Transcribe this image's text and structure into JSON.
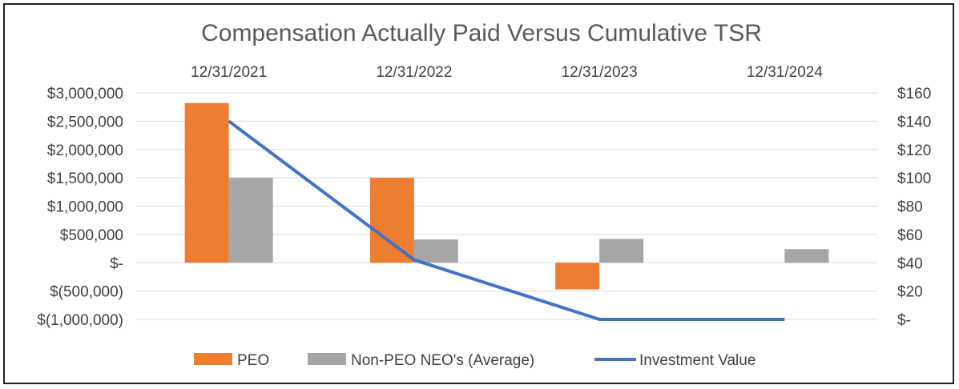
{
  "chart_data": {
    "type": "bar",
    "title": "Compensation Actually Paid Versus Cumulative TSR",
    "categories": [
      "12/31/2021",
      "12/31/2022",
      "12/31/2023",
      "12/31/2024"
    ],
    "series": [
      {
        "name": "PEO",
        "type": "bar",
        "axis": "left",
        "color": "#ED7D31",
        "values": [
          2820000,
          1500000,
          -470000,
          0
        ]
      },
      {
        "name": "Non-PEO NEO's (Average)",
        "type": "bar",
        "axis": "left",
        "color": "#A5A5A5",
        "values": [
          1500000,
          410000,
          420000,
          240000
        ]
      },
      {
        "name": "Investment Value",
        "type": "line",
        "axis": "right",
        "color": "#4472C4",
        "values": [
          140,
          42,
          0,
          0
        ]
      }
    ],
    "left_axis": {
      "min": -1000000,
      "max": 3000000,
      "step": 500000,
      "tick_labels": [
        "$(1,000,000)",
        "$(500,000)",
        "$-",
        "$500,000",
        "$1,000,000",
        "$1,500,000",
        "$2,000,000",
        "$2,500,000",
        "$3,000,000"
      ]
    },
    "right_axis": {
      "min": 0,
      "max": 160,
      "step": 20,
      "tick_labels": [
        "$-",
        "$20",
        "$40",
        "$60",
        "$80",
        "$100",
        "$120",
        "$140",
        "$160"
      ]
    },
    "gridlines": true,
    "category_labels_position": "top",
    "legend_position": "bottom"
  }
}
